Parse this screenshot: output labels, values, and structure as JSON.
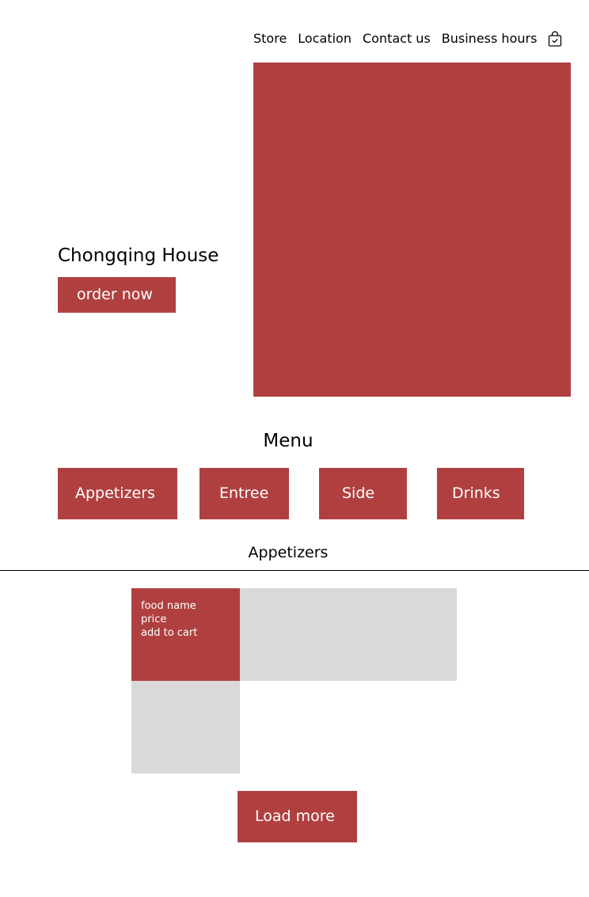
{
  "nav": {
    "items": [
      {
        "label": "Store"
      },
      {
        "label": "Location"
      },
      {
        "label": "Contact us"
      },
      {
        "label": "Business hours"
      }
    ],
    "cart_icon": "shopping-bag-check-icon"
  },
  "hero": {
    "title": "Chongqing House",
    "order_label": "order now"
  },
  "menu": {
    "title": "Menu",
    "categories": [
      {
        "label": "Appetizers"
      },
      {
        "label": "Entree"
      },
      {
        "label": "Side"
      },
      {
        "label": "Drinks"
      }
    ]
  },
  "section": {
    "title": "Appetizers",
    "items": [
      {
        "name": "food name",
        "price": "price",
        "cart_label": "add to cart"
      }
    ]
  },
  "load_more_label": "Load more",
  "colors": {
    "accent": "#b04040",
    "placeholder": "#d9d9d9",
    "background": "#ffffff",
    "text": "#000000"
  }
}
